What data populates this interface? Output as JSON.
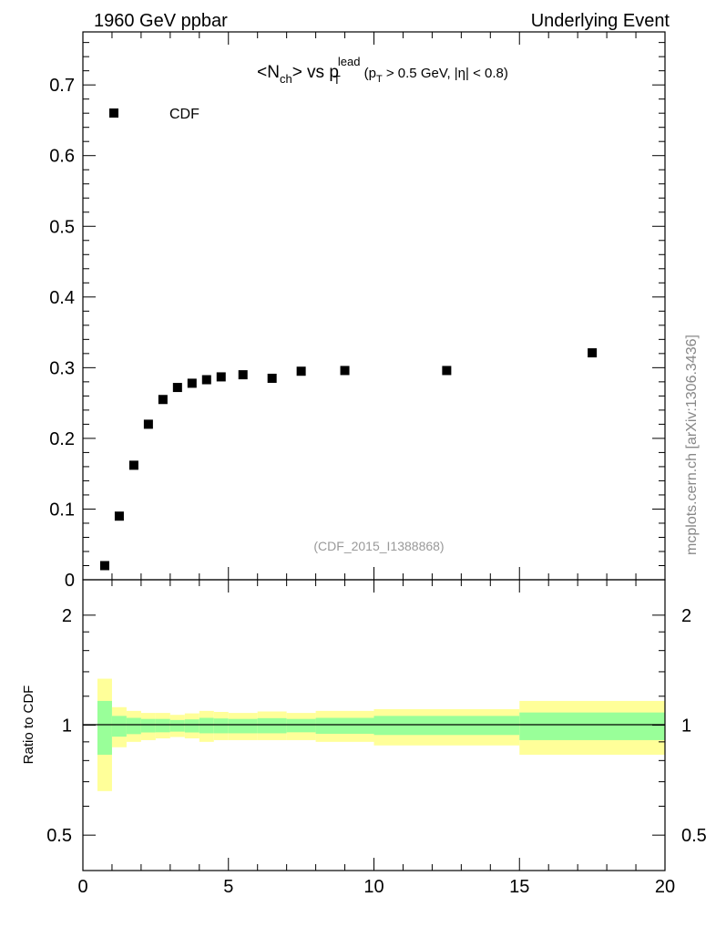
{
  "header": {
    "left": "1960 GeV ppbar",
    "right": "Underlying Event",
    "side": "mcplots.cern.ch [arXiv:1306.3436]"
  },
  "chart_data": [
    {
      "type": "scatter",
      "title_parts": {
        "a": "<N",
        "b": "ch",
        "c": "> vs p",
        "d": "T",
        "e": "lead",
        "f": " (p",
        "g": "T",
        "h": " > 0.5 GeV, |η| < 0.8)"
      },
      "legend": {
        "label": "CDF",
        "placement": "top-left"
      },
      "annotation": "(CDF_2015_I1388868)",
      "xlim": [
        0,
        20
      ],
      "ylim": [
        0,
        0.775
      ],
      "yticks": [
        0,
        0.1,
        0.2,
        0.3,
        0.4,
        0.5,
        0.6,
        0.7
      ],
      "ytick_labels": [
        "0",
        "0.1",
        "0.2",
        "0.3",
        "0.4",
        "0.5",
        "0.6",
        "0.7"
      ],
      "x": [
        0.75,
        1.25,
        1.75,
        2.25,
        2.75,
        3.25,
        3.75,
        4.25,
        4.75,
        5.5,
        6.5,
        7.5,
        9,
        12.5,
        17.5
      ],
      "y": [
        0.02,
        0.09,
        0.162,
        0.22,
        0.255,
        0.272,
        0.278,
        0.283,
        0.287,
        0.29,
        0.285,
        0.295,
        0.296,
        0.296,
        0.321
      ]
    },
    {
      "type": "area",
      "ylabel": "Ratio to CDF",
      "yscale": "log",
      "xlim": [
        0,
        20
      ],
      "ylim": [
        0.4,
        2.5
      ],
      "yticks": [
        0.5,
        1,
        2
      ],
      "ytick_labels": [
        "0.5",
        "1",
        "2"
      ],
      "xticks": [
        0,
        5,
        10,
        15,
        20
      ],
      "xtick_labels": [
        "0",
        "5",
        "10",
        "15",
        "20"
      ],
      "bin_edges": [
        0.5,
        1,
        1.5,
        2,
        2.5,
        3,
        3.5,
        4,
        4.5,
        5,
        6,
        7,
        8,
        10,
        15,
        20
      ],
      "yellow_hi": [
        1.34,
        1.12,
        1.094,
        1.08,
        1.08,
        1.067,
        1.077,
        1.094,
        1.087,
        1.08,
        1.09,
        1.08,
        1.094,
        1.106,
        1.165
      ],
      "yellow_lo": [
        0.66,
        0.87,
        0.9,
        0.91,
        0.92,
        0.928,
        0.92,
        0.9,
        0.91,
        0.91,
        0.91,
        0.91,
        0.9,
        0.88,
        0.83
      ],
      "green_hi": [
        1.165,
        1.06,
        1.047,
        1.04,
        1.04,
        1.033,
        1.037,
        1.047,
        1.043,
        1.04,
        1.045,
        1.04,
        1.047,
        1.06,
        1.083
      ],
      "green_lo": [
        0.83,
        0.93,
        0.945,
        0.955,
        0.956,
        0.96,
        0.955,
        0.95,
        0.95,
        0.95,
        0.95,
        0.956,
        0.947,
        0.94,
        0.91
      ],
      "colors": {
        "yellow": "#ffff99",
        "green": "#99ff99"
      }
    }
  ]
}
